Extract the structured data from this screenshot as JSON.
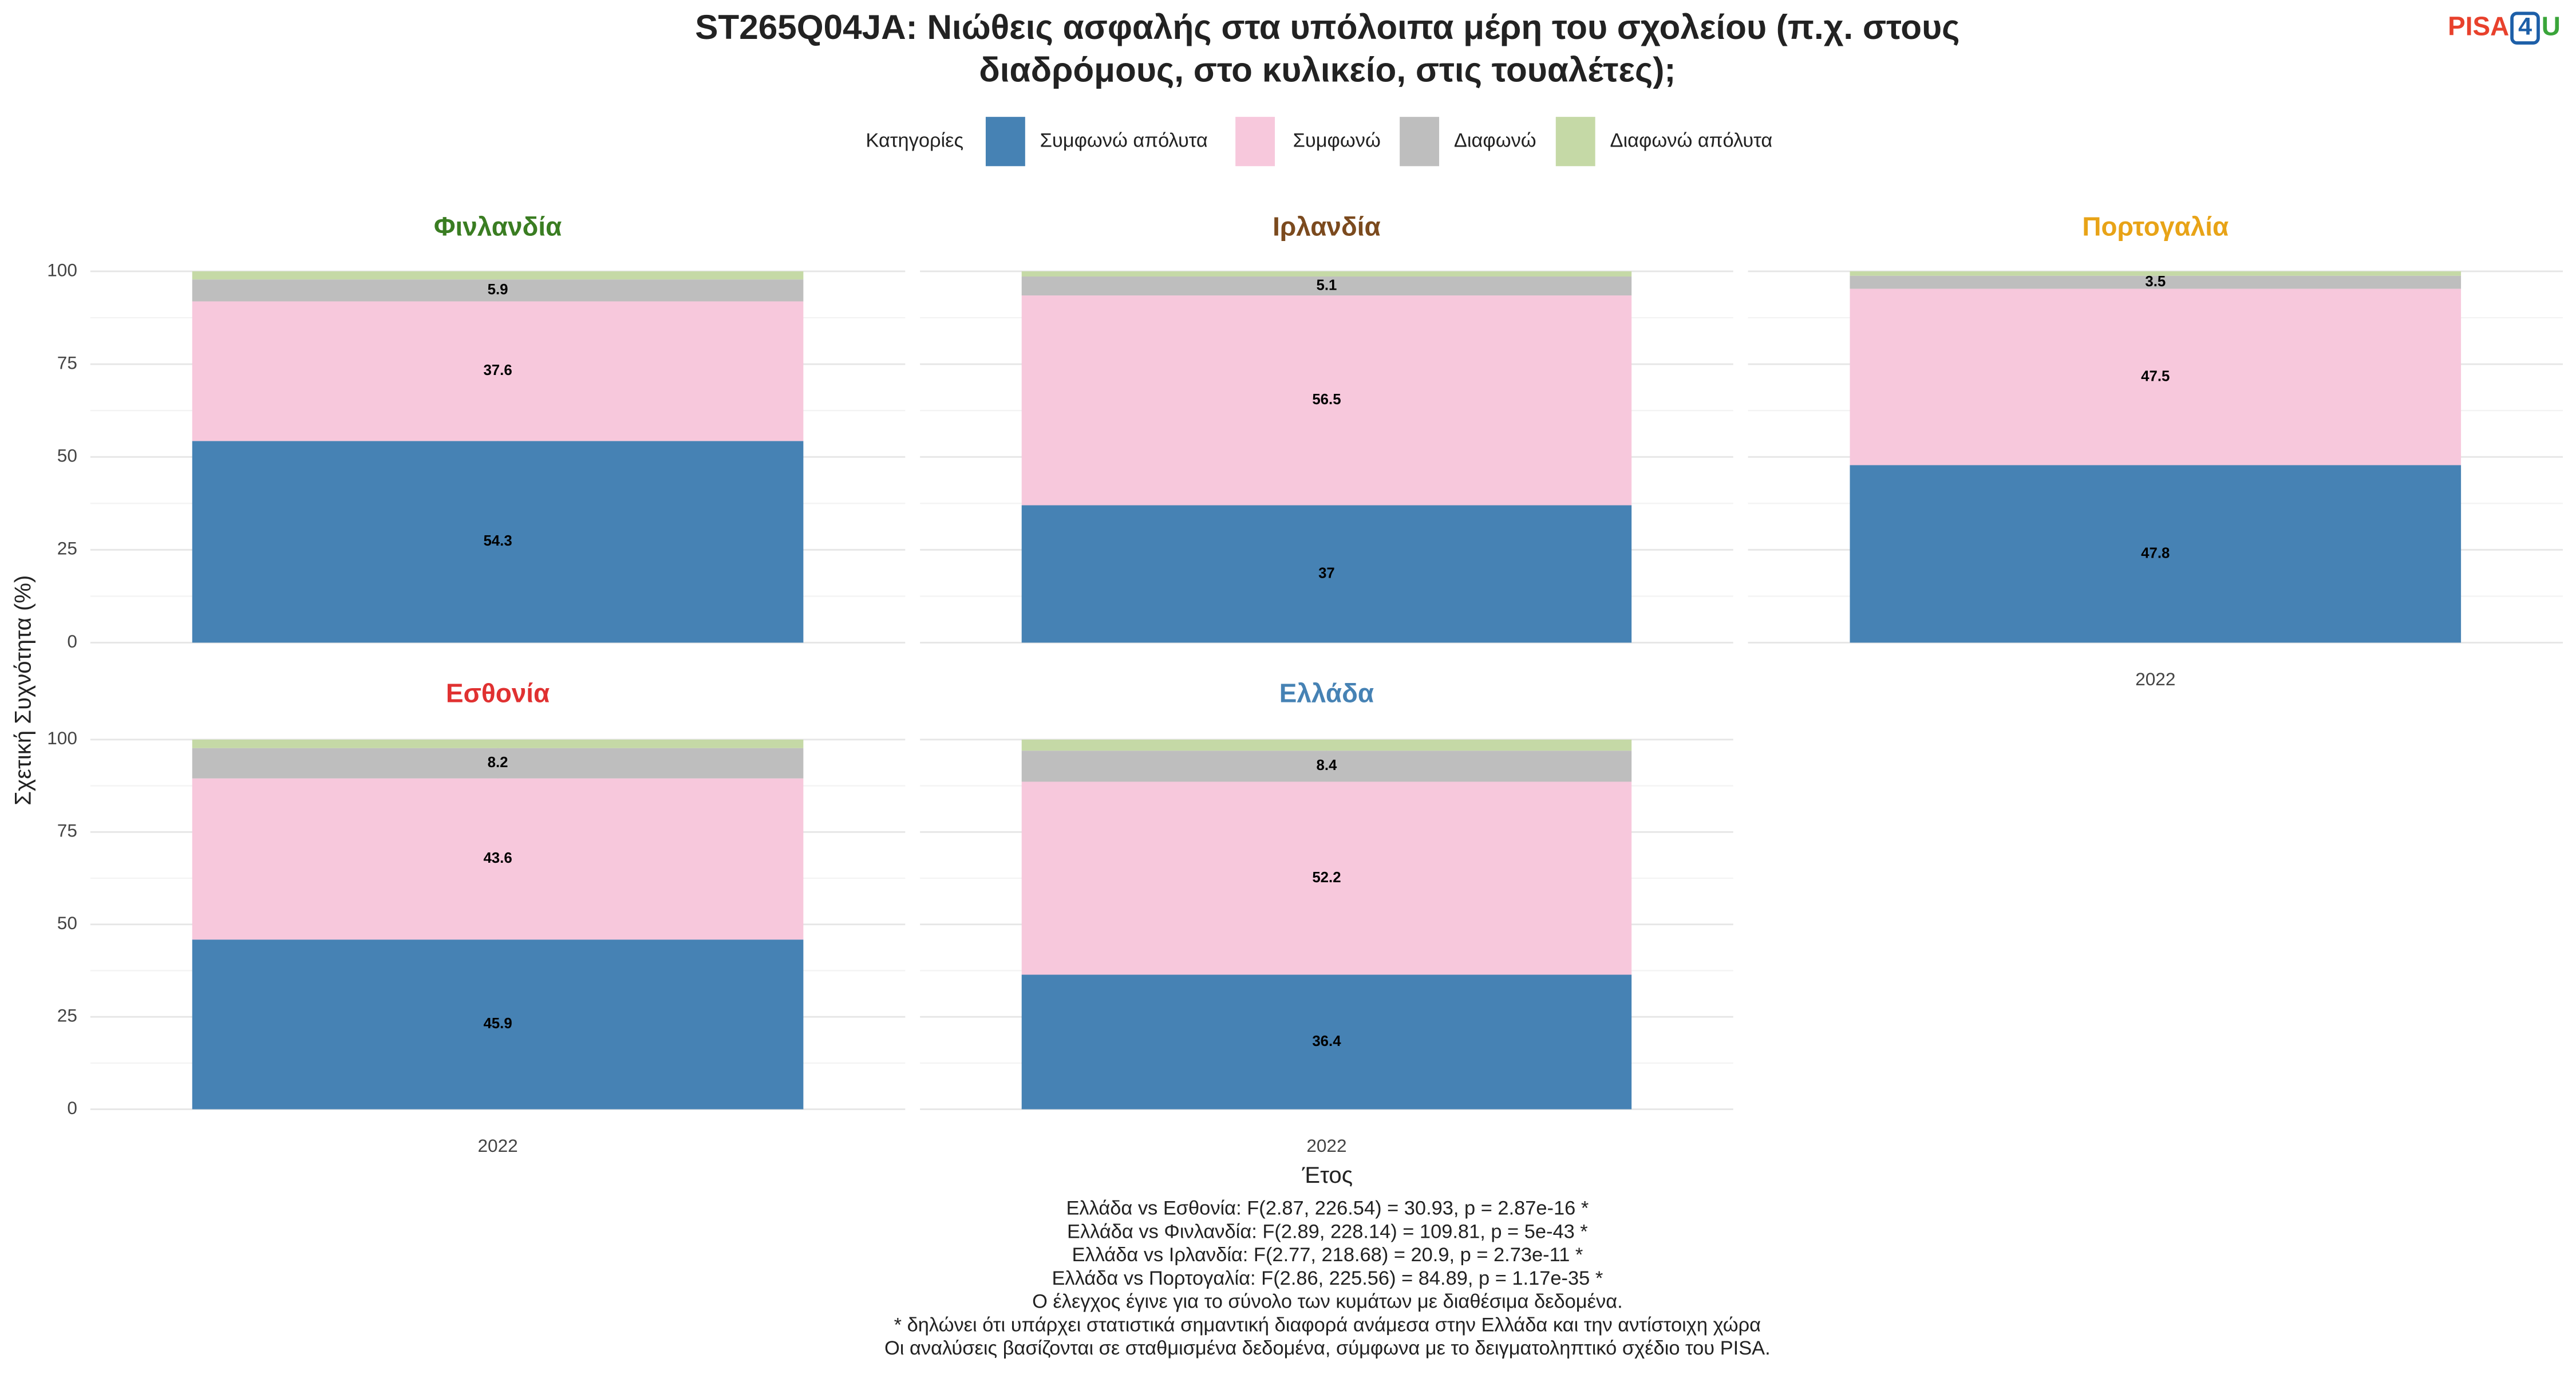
{
  "title": [
    "ST265Q04JA: Νιώθεις ασφαλής στα υπόλοιπα μέρη του σχολείου (π.χ. στους",
    "διαδρόμους, στο κυλικείο, στις τουαλέτες);"
  ],
  "logo": [
    "PISA",
    "4",
    "U"
  ],
  "legend_title": "Κατηγορίες",
  "ylabel": "Σχετική Συχνότητα (%)",
  "xlabel": "Έτος",
  "notes": [
    "Ελλάδα vs Εσθονία: F(2.87, 226.54) = 30.93, p = 2.87e-16 *",
    "Ελλάδα vs Φινλανδία: F(2.89, 228.14) = 109.81, p = 5e-43 *",
    "Ελλάδα vs Ιρλανδία: F(2.77, 218.68) = 20.9, p = 2.73e-11 *",
    "Ελλάδα vs Πορτογαλία: F(2.86, 225.56) = 84.89, p = 1.17e-35 *",
    "Ο έλεγχος έγινε για το σύνολο των κυμάτων με διαθέσιμα δεδομένα.",
    "* δηλώνει ότι υπάρχει στατιστικά σημαντική διαφορά ανάμεσα στην Ελλάδα και την αντίστοιχη χώρα",
    "Οι αναλύσεις βασίζονται σε σταθμισμένα δεδομένα, σύμφωνα με το δειγματοληπτικό σχέδιο του PISA."
  ],
  "chart_data": [
    {
      "type": "bar",
      "stacked": true,
      "title": "Φινλανδία",
      "title_color": "#3a7d22",
      "categories": [
        "2022"
      ],
      "ylim": [
        0,
        100
      ],
      "yticks": [
        0,
        25,
        50,
        75,
        100
      ],
      "grid": true,
      "series": [
        {
          "name": "Συμφωνώ απόλυτα",
          "color": "#4682b4",
          "labels": true,
          "values": [
            54.3
          ]
        },
        {
          "name": "Συμφωνώ",
          "color": "#f7c8dc",
          "labels": true,
          "values": [
            37.6
          ]
        },
        {
          "name": "Διαφωνώ",
          "color": "#bebebe",
          "labels": true,
          "values": [
            5.9
          ]
        },
        {
          "name": "Διαφωνώ απόλυτα",
          "color": "#c5d9a6",
          "labels": false,
          "values": [
            2.2
          ]
        }
      ]
    },
    {
      "type": "bar",
      "stacked": true,
      "title": "Ιρλανδία",
      "title_color": "#7b4a1e",
      "categories": [
        "2022"
      ],
      "ylim": [
        0,
        100
      ],
      "yticks": [
        0,
        25,
        50,
        75,
        100
      ],
      "grid": true,
      "series": [
        {
          "name": "Συμφωνώ απόλυτα",
          "color": "#4682b4",
          "labels": true,
          "values": [
            37
          ]
        },
        {
          "name": "Συμφωνώ",
          "color": "#f7c8dc",
          "labels": true,
          "values": [
            56.5
          ]
        },
        {
          "name": "Διαφωνώ",
          "color": "#bebebe",
          "labels": true,
          "values": [
            5.1
          ]
        },
        {
          "name": "Διαφωνώ απόλυτα",
          "color": "#c5d9a6",
          "labels": false,
          "values": [
            1.4
          ]
        }
      ]
    },
    {
      "type": "bar",
      "stacked": true,
      "title": "Πορτογαλία",
      "title_color": "#e8a317",
      "categories": [
        "2022"
      ],
      "ylim": [
        0,
        100
      ],
      "yticks": [
        0,
        25,
        50,
        75,
        100
      ],
      "grid": true,
      "series": [
        {
          "name": "Συμφωνώ απόλυτα",
          "color": "#4682b4",
          "labels": true,
          "values": [
            47.8
          ]
        },
        {
          "name": "Συμφωνώ",
          "color": "#f7c8dc",
          "labels": true,
          "values": [
            47.5
          ]
        },
        {
          "name": "Διαφωνώ",
          "color": "#bebebe",
          "labels": true,
          "values": [
            3.5
          ]
        },
        {
          "name": "Διαφωνώ απόλυτα",
          "color": "#c5d9a6",
          "labels": false,
          "values": [
            1.2
          ]
        }
      ]
    },
    {
      "type": "bar",
      "stacked": true,
      "title": "Εσθονία",
      "title_color": "#e03131",
      "categories": [
        "2022"
      ],
      "ylim": [
        0,
        100
      ],
      "yticks": [
        0,
        25,
        50,
        75,
        100
      ],
      "grid": true,
      "series": [
        {
          "name": "Συμφωνώ απόλυτα",
          "color": "#4682b4",
          "labels": true,
          "values": [
            45.9
          ]
        },
        {
          "name": "Συμφωνώ",
          "color": "#f7c8dc",
          "labels": true,
          "values": [
            43.6
          ]
        },
        {
          "name": "Διαφωνώ",
          "color": "#bebebe",
          "labels": true,
          "values": [
            8.2
          ]
        },
        {
          "name": "Διαφωνώ απόλυτα",
          "color": "#c5d9a6",
          "labels": false,
          "values": [
            2.3
          ]
        }
      ]
    },
    {
      "type": "bar",
      "stacked": true,
      "title": "Ελλάδα",
      "title_color": "#4682b4",
      "categories": [
        "2022"
      ],
      "ylim": [
        0,
        100
      ],
      "yticks": [
        0,
        25,
        50,
        75,
        100
      ],
      "grid": true,
      "series": [
        {
          "name": "Συμφωνώ απόλυτα",
          "color": "#4682b4",
          "labels": true,
          "values": [
            36.4
          ]
        },
        {
          "name": "Συμφωνώ",
          "color": "#f7c8dc",
          "labels": true,
          "values": [
            52.2
          ]
        },
        {
          "name": "Διαφωνώ",
          "color": "#bebebe",
          "labels": true,
          "values": [
            8.4
          ]
        },
        {
          "name": "Διαφωνώ απόλυτα",
          "color": "#c5d9a6",
          "labels": false,
          "values": [
            3.0
          ]
        }
      ]
    }
  ]
}
